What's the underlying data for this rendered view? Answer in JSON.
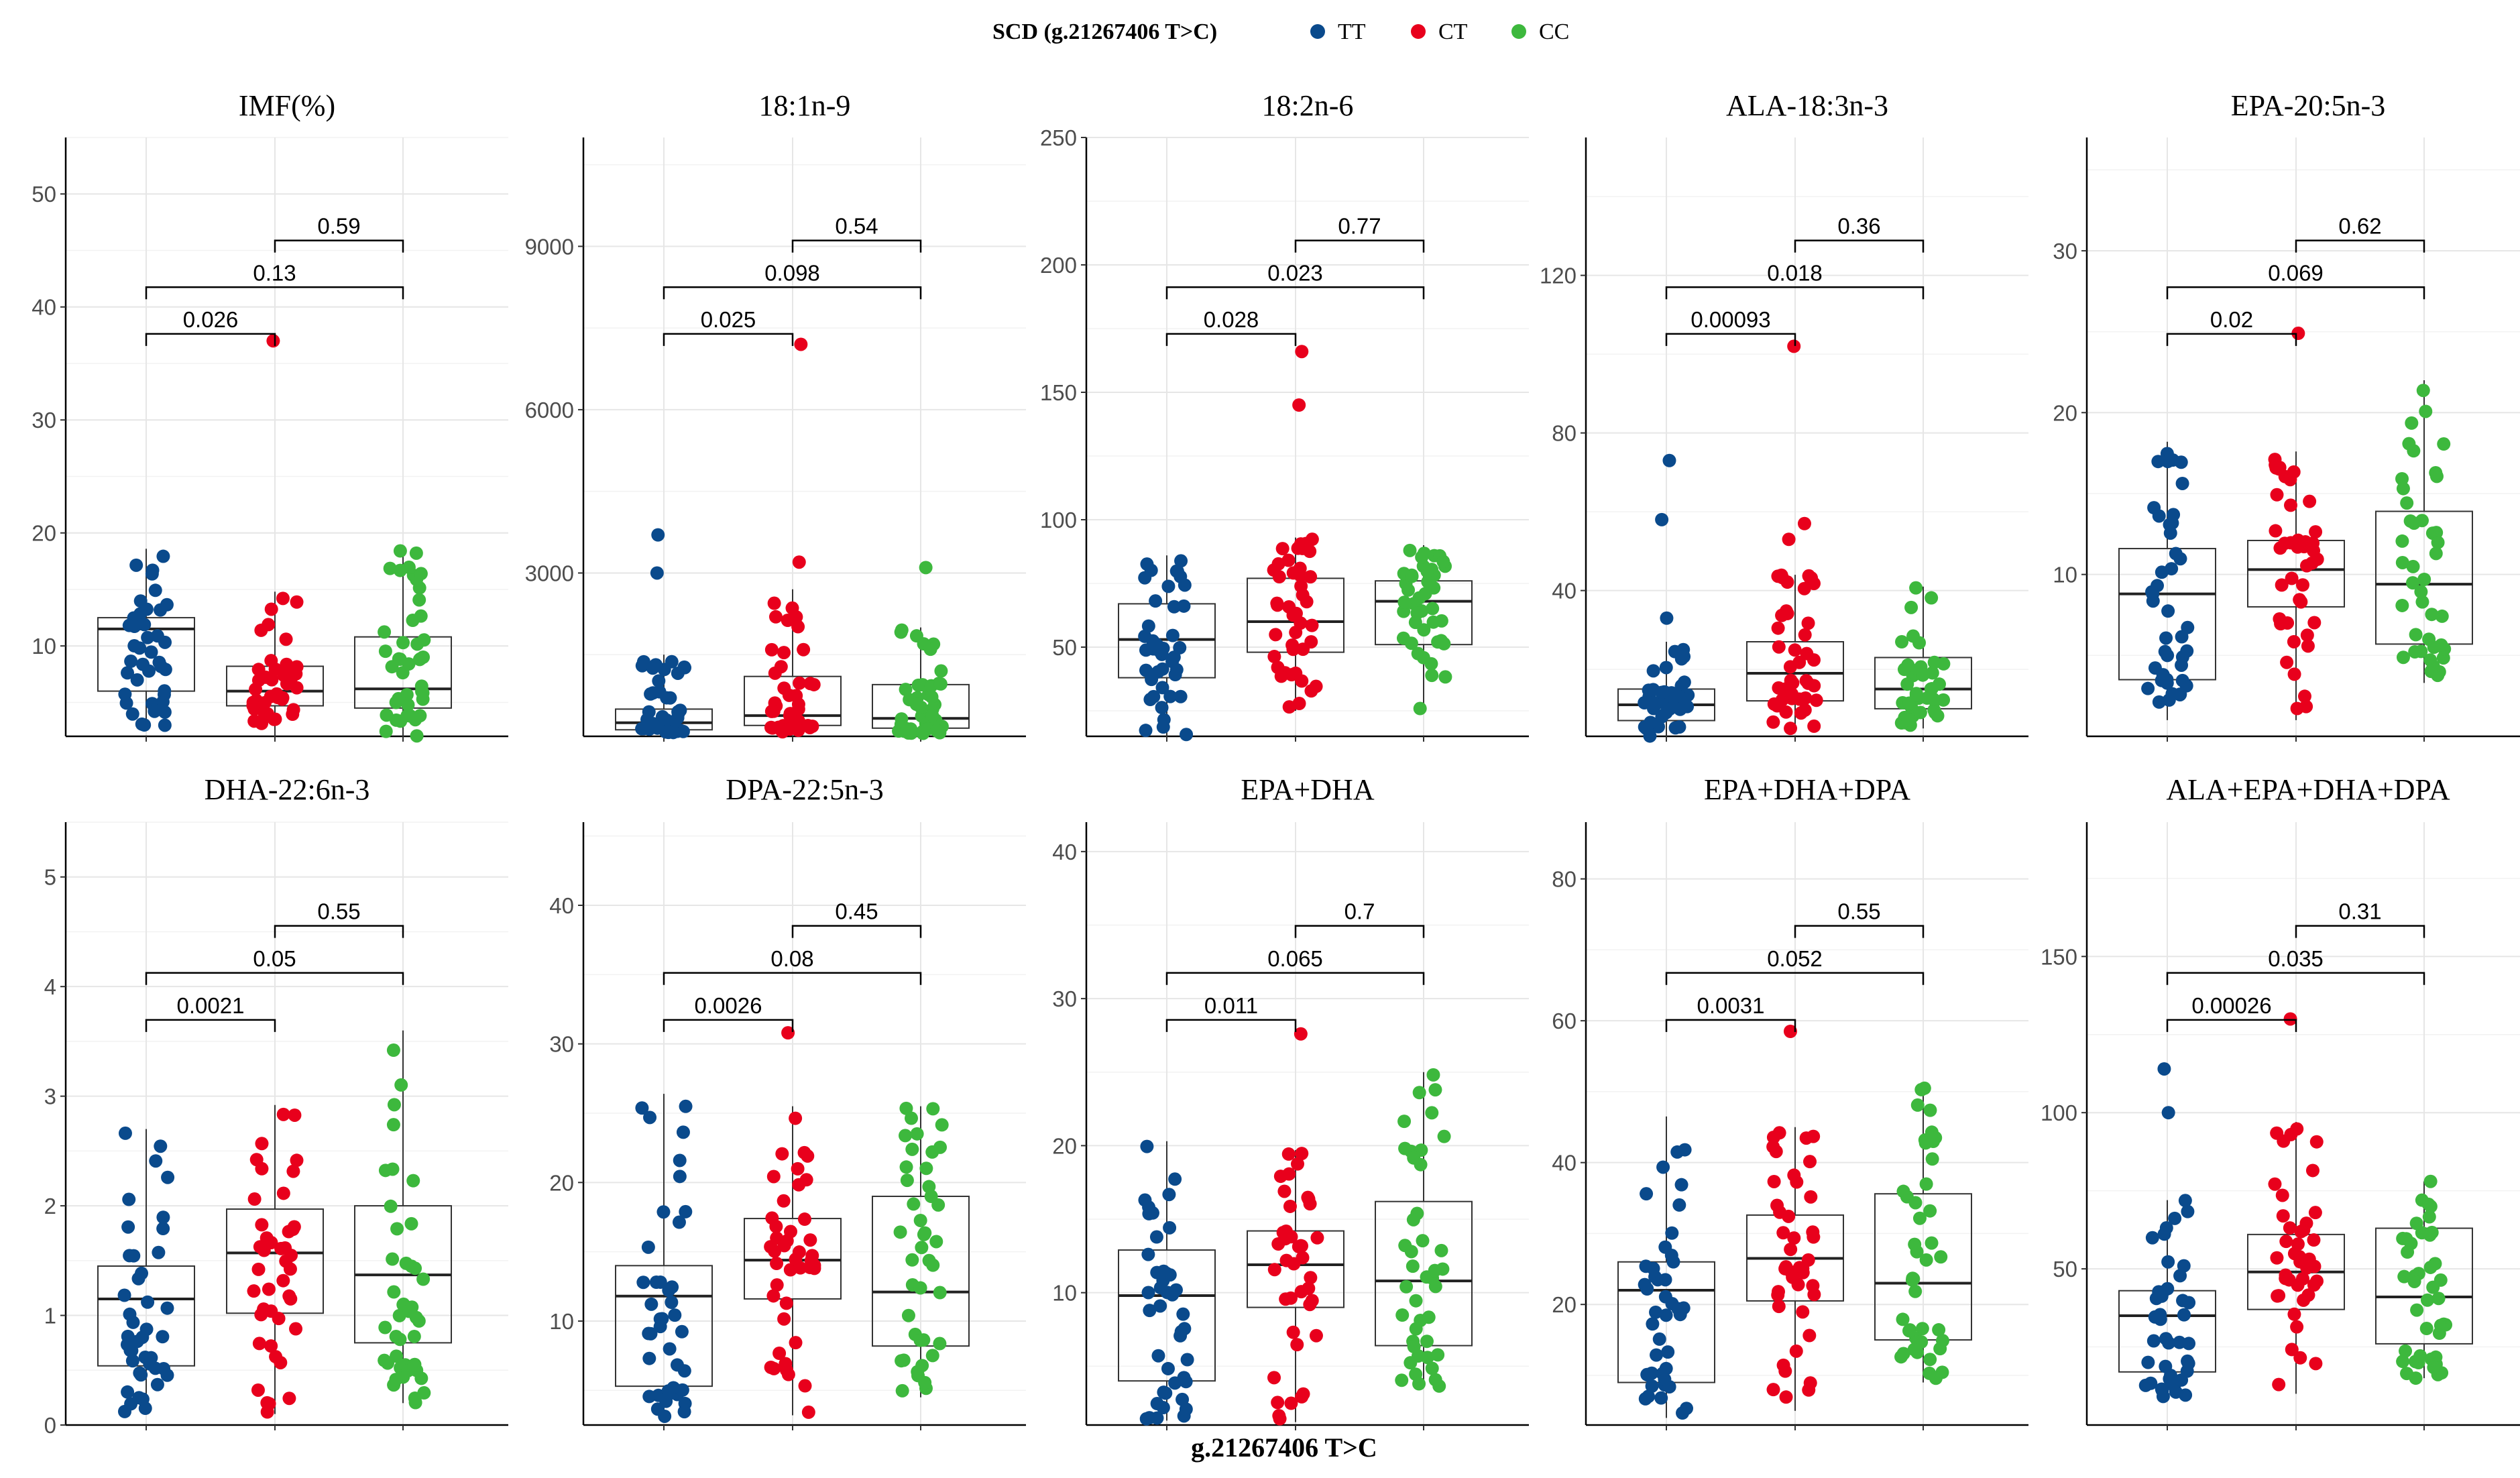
{
  "chart_data": {
    "type": "boxplot",
    "legend": {
      "title": "SCD (g.21267406 T>C)",
      "position": "top",
      "entries": [
        {
          "label": "TT",
          "color": "#0a4a8c"
        },
        {
          "label": "CT",
          "color": "#e8001c"
        },
        {
          "label": "CC",
          "color": "#3db83d"
        }
      ]
    },
    "xlabel": "g.21267406 T>C",
    "groups": [
      "TT",
      "CT",
      "CC"
    ],
    "panels": [
      {
        "title": "IMF(%)",
        "ylim": [
          2,
          55
        ],
        "yticks": [
          10,
          20,
          30,
          40,
          50
        ],
        "boxes": [
          [
            2.5,
            6,
            11.5,
            12.5,
            18.6
          ],
          [
            2,
            4.7,
            6,
            8.2,
            14.8
          ],
          [
            2,
            4.5,
            6.2,
            10.8,
            18.5
          ]
        ],
        "outliers": [
          [],
          [
            37
          ],
          []
        ],
        "pvalues": {
          "TT_CT": "0.026",
          "TT_CC": "0.13",
          "CT_CC": "0.59"
        }
      },
      {
        "title": "18:1n-9",
        "ylim": [
          0,
          11000
        ],
        "yticks": [
          3000,
          6000,
          9000
        ],
        "boxes": [
          [
            50,
            120,
            250,
            500,
            1500
          ],
          [
            50,
            200,
            380,
            1100,
            2700
          ],
          [
            50,
            150,
            330,
            950,
            2000
          ]
        ],
        "outliers": [
          [
            3000,
            3700
          ],
          [
            3200,
            7200
          ],
          [
            3100
          ]
        ],
        "pvalues": {
          "TT_CT": "0.025",
          "TT_CC": "0.098",
          "CT_CC": "0.54"
        }
      },
      {
        "title": "18:2n-6",
        "ylim": [
          15,
          250
        ],
        "yticks": [
          50,
          100,
          150,
          200,
          250
        ],
        "boxes": [
          [
            15,
            38,
            53,
            67,
            86
          ],
          [
            25,
            48,
            60,
            77,
            93
          ],
          [
            25,
            51,
            68,
            76,
            90
          ]
        ],
        "outliers": [
          [],
          [
            145,
            166
          ],
          []
        ],
        "pvalues": {
          "TT_CT": "0.028",
          "TT_CC": "0.023",
          "CT_CC": "0.77"
        }
      },
      {
        "title": "ALA-18:3n-3",
        "ylim": [
          3,
          155
        ],
        "yticks": [
          40,
          80,
          120
        ],
        "boxes": [
          [
            3,
            7,
            11,
            15,
            27
          ],
          [
            5,
            12,
            19,
            27,
            44
          ],
          [
            5,
            10,
            15,
            23,
            41
          ]
        ],
        "outliers": [
          [
            33,
            58,
            73
          ],
          [
            53,
            57,
            102
          ],
          []
        ],
        "pvalues": {
          "TT_CT": "0.00093",
          "TT_CC": "0.018",
          "CT_CC": "0.36"
        }
      },
      {
        "title": "EPA-20:5n-3",
        "ylim": [
          0,
          37
        ],
        "yticks": [
          10,
          20,
          30
        ],
        "boxes": [
          [
            1,
            3.5,
            8.8,
            11.6,
            18.2
          ],
          [
            1,
            8,
            10.3,
            12.1,
            17.6
          ],
          [
            3.3,
            5.7,
            9.4,
            13.9,
            22
          ]
        ],
        "outliers": [
          [],
          [
            24.9
          ],
          []
        ],
        "pvalues": {
          "TT_CT": "0.02",
          "TT_CC": "0.069",
          "CT_CC": "0.62"
        }
      },
      {
        "title": "DHA-22:6n-3",
        "ylim": [
          0,
          5.5
        ],
        "yticks": [
          0,
          1,
          2,
          3,
          4,
          5
        ],
        "boxes": [
          [
            0.1,
            0.54,
            1.15,
            1.45,
            2.7
          ],
          [
            0.1,
            1.02,
            1.57,
            1.97,
            2.92
          ],
          [
            0.2,
            0.75,
            1.37,
            2.0,
            3.6
          ]
        ],
        "outliers": [
          [],
          [],
          []
        ],
        "pvalues": {
          "TT_CT": "0.0021",
          "TT_CC": "0.05",
          "CT_CC": "0.55"
        }
      },
      {
        "title": "DPA-22:5n-3",
        "ylim": [
          2.5,
          46
        ],
        "yticks": [
          10,
          20,
          30,
          40
        ],
        "boxes": [
          [
            3,
            5.3,
            11.8,
            14,
            26.4
          ],
          [
            3.2,
            11.6,
            14.4,
            17.4,
            25.5
          ],
          [
            4.5,
            8.2,
            12.1,
            19,
            25.5
          ]
        ],
        "outliers": [
          [],
          [
            30.8
          ],
          []
        ],
        "pvalues": {
          "TT_CT": "0.0026",
          "TT_CC": "0.08",
          "CT_CC": "0.45"
        }
      },
      {
        "title": "EPA+DHA",
        "ylim": [
          1,
          42
        ],
        "yticks": [
          10,
          20,
          30,
          40
        ],
        "boxes": [
          [
            1.3,
            4,
            9.8,
            12.9,
            20.3
          ],
          [
            1.2,
            9,
            11.9,
            14.2,
            19.7
          ],
          [
            3.6,
            6.4,
            10.8,
            16.2,
            25
          ]
        ],
        "outliers": [
          [],
          [
            27.6
          ],
          []
        ],
        "pvalues": {
          "TT_CT": "0.011",
          "TT_CC": "0.065",
          "CT_CC": "0.7"
        }
      },
      {
        "title": "EPA+DHA+DPA",
        "ylim": [
          3,
          88
        ],
        "yticks": [
          20,
          40,
          60,
          80
        ],
        "boxes": [
          [
            4,
            9,
            22,
            26,
            46.5
          ],
          [
            5,
            20.5,
            26.5,
            32.6,
            45
          ],
          [
            9,
            15,
            23,
            35.6,
            50.5
          ]
        ],
        "outliers": [
          [],
          [
            58.5
          ],
          []
        ],
        "pvalues": {
          "TT_CT": "0.0031",
          "TT_CC": "0.052",
          "CT_CC": "0.55"
        }
      },
      {
        "title": "ALA+EPA+DHA+DPA",
        "ylim": [
          0,
          193
        ],
        "yticks": [
          50,
          100,
          150
        ],
        "boxes": [
          [
            9,
            17,
            35,
            43,
            72
          ],
          [
            10,
            37,
            49,
            61,
            97
          ],
          [
            15,
            26,
            41,
            63,
            78
          ]
        ],
        "outliers": [
          [
            100,
            114
          ],
          [
            130
          ],
          []
        ],
        "pvalues": {
          "TT_CT": "0.00026",
          "TT_CC": "0.035",
          "CT_CC": "0.31"
        }
      }
    ]
  }
}
